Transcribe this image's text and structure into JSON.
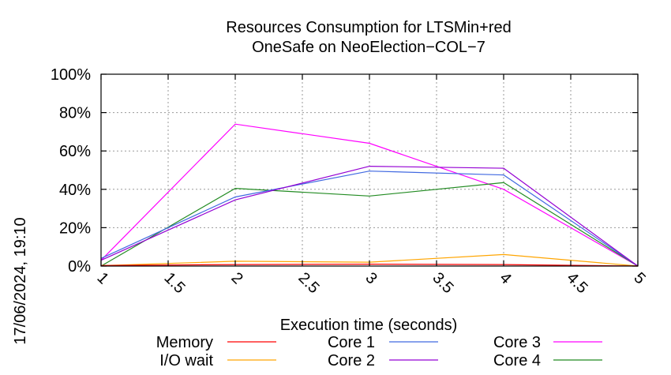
{
  "chart_data": {
    "type": "line",
    "title_line1": "Resources Consumption for LTSMin+red",
    "title_line2": "OneSafe on NeoElection−COL−7",
    "xlabel": "Execution time (seconds)",
    "ylabel": "",
    "side_label": "17/06/2024, 19:10",
    "xlim": [
      1,
      5
    ],
    "ylim": [
      0,
      100
    ],
    "grid": true,
    "legend_position": "bottom",
    "x_ticks": [
      "1",
      "1.5",
      "2",
      "2.5",
      "3",
      "3.5",
      "4",
      "4.5",
      "5"
    ],
    "y_ticks": [
      "0%",
      "20%",
      "40%",
      "60%",
      "80%",
      "100%"
    ],
    "x": [
      1,
      2,
      3,
      4,
      5
    ],
    "series": [
      {
        "name": "Memory",
        "color": "#ff0000",
        "values": [
          0.3,
          0.8,
          1.0,
          0.8,
          0
        ]
      },
      {
        "name": "I/O wait",
        "color": "#ffa500",
        "values": [
          0.2,
          2.5,
          2.0,
          6.0,
          0
        ]
      },
      {
        "name": "Core 1",
        "color": "#4169e1",
        "values": [
          4,
          36,
          49.5,
          47.5,
          0
        ]
      },
      {
        "name": "Core 2",
        "color": "#9400d3",
        "values": [
          3,
          34.5,
          52,
          51,
          0
        ]
      },
      {
        "name": "Core 3",
        "color": "#ff00ff",
        "values": [
          3,
          74,
          64,
          40,
          0
        ]
      },
      {
        "name": "Core 4",
        "color": "#228b22",
        "values": [
          0,
          40.5,
          36.5,
          43.5,
          0
        ]
      }
    ]
  }
}
